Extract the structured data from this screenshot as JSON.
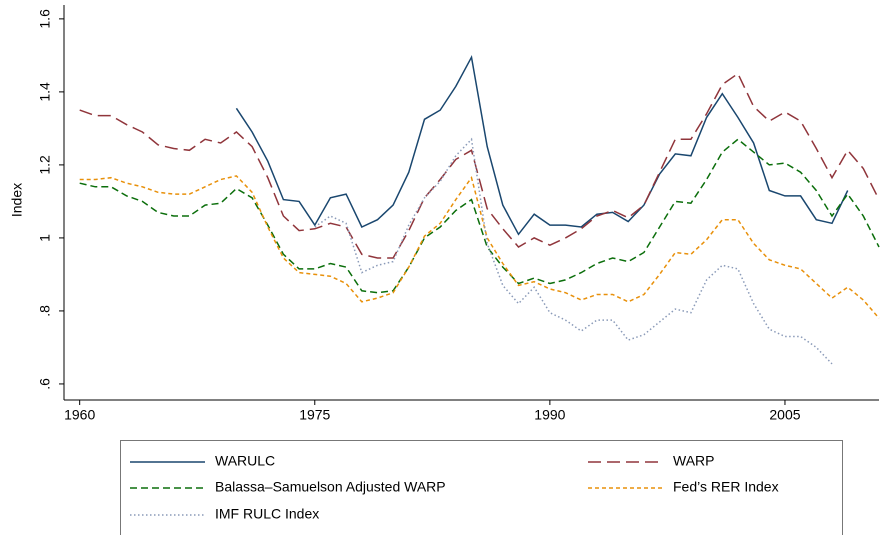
{
  "chart_data": {
    "type": "line",
    "y_label": "Index",
    "x": [
      1960,
      1961,
      1962,
      1963,
      1964,
      1965,
      1966,
      1967,
      1968,
      1969,
      1970,
      1971,
      1972,
      1973,
      1974,
      1975,
      1976,
      1977,
      1978,
      1979,
      1980,
      1981,
      1982,
      1983,
      1984,
      1985,
      1986,
      1987,
      1988,
      1989,
      1990,
      1991,
      1992,
      1993,
      1994,
      1995,
      1996,
      1997,
      1998,
      1999,
      2000,
      2001,
      2002,
      2003,
      2004,
      2005,
      2006,
      2007,
      2008,
      2009,
      2010,
      2011
    ],
    "xlim": [
      1959,
      2011
    ],
    "xticks": [
      1960,
      1975,
      1990,
      2005
    ],
    "ylim": [
      0.556,
      1.638
    ],
    "yticks": [
      {
        "value": 0.6,
        "label": ".6"
      },
      {
        "value": 0.8,
        "label": ".8"
      },
      1,
      1.2,
      1.4,
      1.6
    ],
    "grid": false,
    "series": [
      {
        "name": "WARULC",
        "color": "#1a476f",
        "style": "solid",
        "values": [
          null,
          null,
          null,
          null,
          null,
          null,
          null,
          null,
          null,
          null,
          1.355,
          1.29,
          1.21,
          1.105,
          1.1,
          1.035,
          1.11,
          1.12,
          1.03,
          1.05,
          1.09,
          1.18,
          1.325,
          1.35,
          1.415,
          1.495,
          1.25,
          1.09,
          1.01,
          1.065,
          1.035,
          1.035,
          1.03,
          1.065,
          1.07,
          1.045,
          1.09,
          1.175,
          1.23,
          1.225,
          1.33,
          1.395,
          1.33,
          1.26,
          1.13,
          1.115,
          1.115,
          1.05,
          1.04,
          1.13,
          null,
          null
        ]
      },
      {
        "name": "WARP",
        "color": "#90353b",
        "style": "longdash",
        "values": [
          1.35,
          1.335,
          1.335,
          1.31,
          1.29,
          1.255,
          1.245,
          1.24,
          1.27,
          1.26,
          1.29,
          1.25,
          1.165,
          1.06,
          1.02,
          1.025,
          1.04,
          1.03,
          0.955,
          0.945,
          0.945,
          1.02,
          1.11,
          1.16,
          1.215,
          1.24,
          1.08,
          1.025,
          0.975,
          1.0,
          0.98,
          1.0,
          1.025,
          1.06,
          1.075,
          1.055,
          1.09,
          1.18,
          1.27,
          1.27,
          1.34,
          1.42,
          1.45,
          1.36,
          1.32,
          1.345,
          1.32,
          1.245,
          1.165,
          1.24,
          1.19,
          1.105
        ]
      },
      {
        "name": "Balassa–Samuelson Adjusted WARP",
        "color": "#0b6e0b",
        "style": "dash",
        "values": [
          1.15,
          1.14,
          1.14,
          1.115,
          1.1,
          1.07,
          1.06,
          1.06,
          1.09,
          1.095,
          1.135,
          1.11,
          1.035,
          0.955,
          0.915,
          0.915,
          0.93,
          0.92,
          0.855,
          0.85,
          0.855,
          0.92,
          1.0,
          1.03,
          1.075,
          1.105,
          0.975,
          0.92,
          0.875,
          0.89,
          0.875,
          0.885,
          0.905,
          0.93,
          0.945,
          0.935,
          0.96,
          1.03,
          1.1,
          1.095,
          1.16,
          1.235,
          1.27,
          1.235,
          1.2,
          1.205,
          1.18,
          1.13,
          1.06,
          1.12,
          1.06,
          0.975
        ]
      },
      {
        "name": "Fed’s RER Index",
        "color": "#e8900a",
        "style": "shortdash",
        "values": [
          1.16,
          1.16,
          1.165,
          1.15,
          1.14,
          1.125,
          1.12,
          1.12,
          1.14,
          1.16,
          1.17,
          1.125,
          1.03,
          0.945,
          0.905,
          0.9,
          0.895,
          0.875,
          0.825,
          0.835,
          0.85,
          0.92,
          1.005,
          1.04,
          1.105,
          1.165,
          1.0,
          0.93,
          0.87,
          0.88,
          0.86,
          0.85,
          0.83,
          0.845,
          0.845,
          0.825,
          0.845,
          0.9,
          0.96,
          0.955,
          0.995,
          1.05,
          1.05,
          0.985,
          0.94,
          0.925,
          0.915,
          0.875,
          0.835,
          0.865,
          0.83,
          0.78
        ]
      },
      {
        "name": "IMF RULC Index",
        "color": "#8a9ab8",
        "style": "dot",
        "values": [
          null,
          null,
          null,
          null,
          null,
          null,
          null,
          null,
          null,
          null,
          null,
          null,
          null,
          null,
          null,
          1.03,
          1.06,
          1.04,
          0.905,
          0.925,
          0.935,
          1.035,
          1.11,
          1.155,
          1.225,
          1.27,
          0.985,
          0.87,
          0.82,
          0.865,
          0.795,
          0.775,
          0.745,
          0.775,
          0.775,
          0.72,
          0.735,
          0.77,
          0.805,
          0.795,
          0.885,
          0.925,
          0.915,
          0.82,
          0.75,
          0.73,
          0.73,
          0.7,
          0.655,
          null,
          null,
          null
        ]
      }
    ]
  }
}
